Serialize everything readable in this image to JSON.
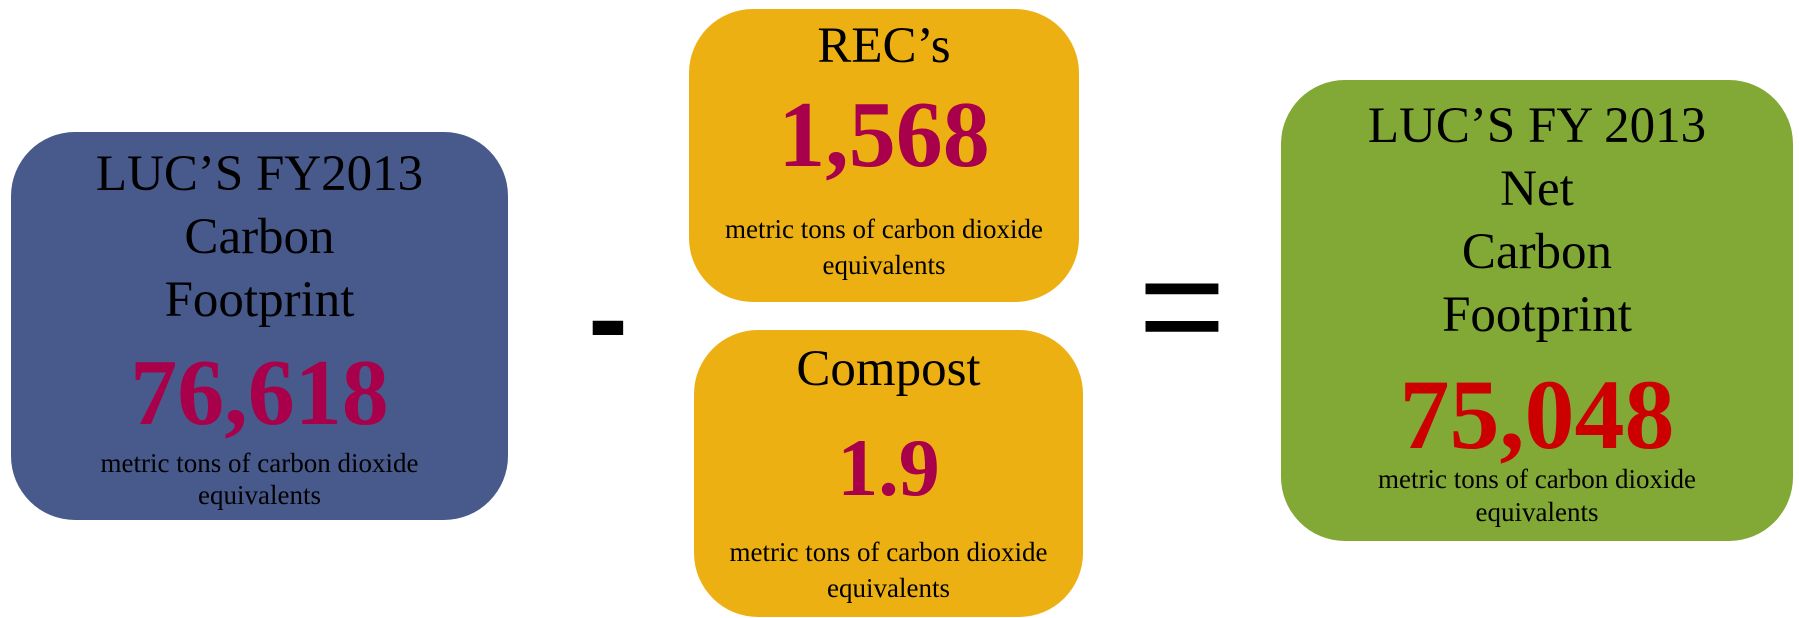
{
  "boxes": [
    {
      "title": [
        "LUC’S FY2013",
        "Carbon",
        "Footprint"
      ],
      "value": "76,618",
      "unit": [
        "metric tons of carbon dioxide",
        "equivalents"
      ]
    },
    {
      "title": [
        "REC’s"
      ],
      "value": "1,568",
      "unit": [
        "metric tons of carbon dioxide",
        "equivalents"
      ]
    },
    {
      "title": [
        "Compost"
      ],
      "value": "1.9",
      "unit": [
        "metric tons of carbon dioxide",
        "equivalents"
      ]
    },
    {
      "title": [
        "LUC’S FY 2013",
        "Net",
        "Carbon",
        "Footprint"
      ],
      "value": "75,048",
      "unit": [
        "metric tons of carbon dioxide",
        "equivalents"
      ]
    }
  ],
  "operators": [
    "-",
    "="
  ]
}
